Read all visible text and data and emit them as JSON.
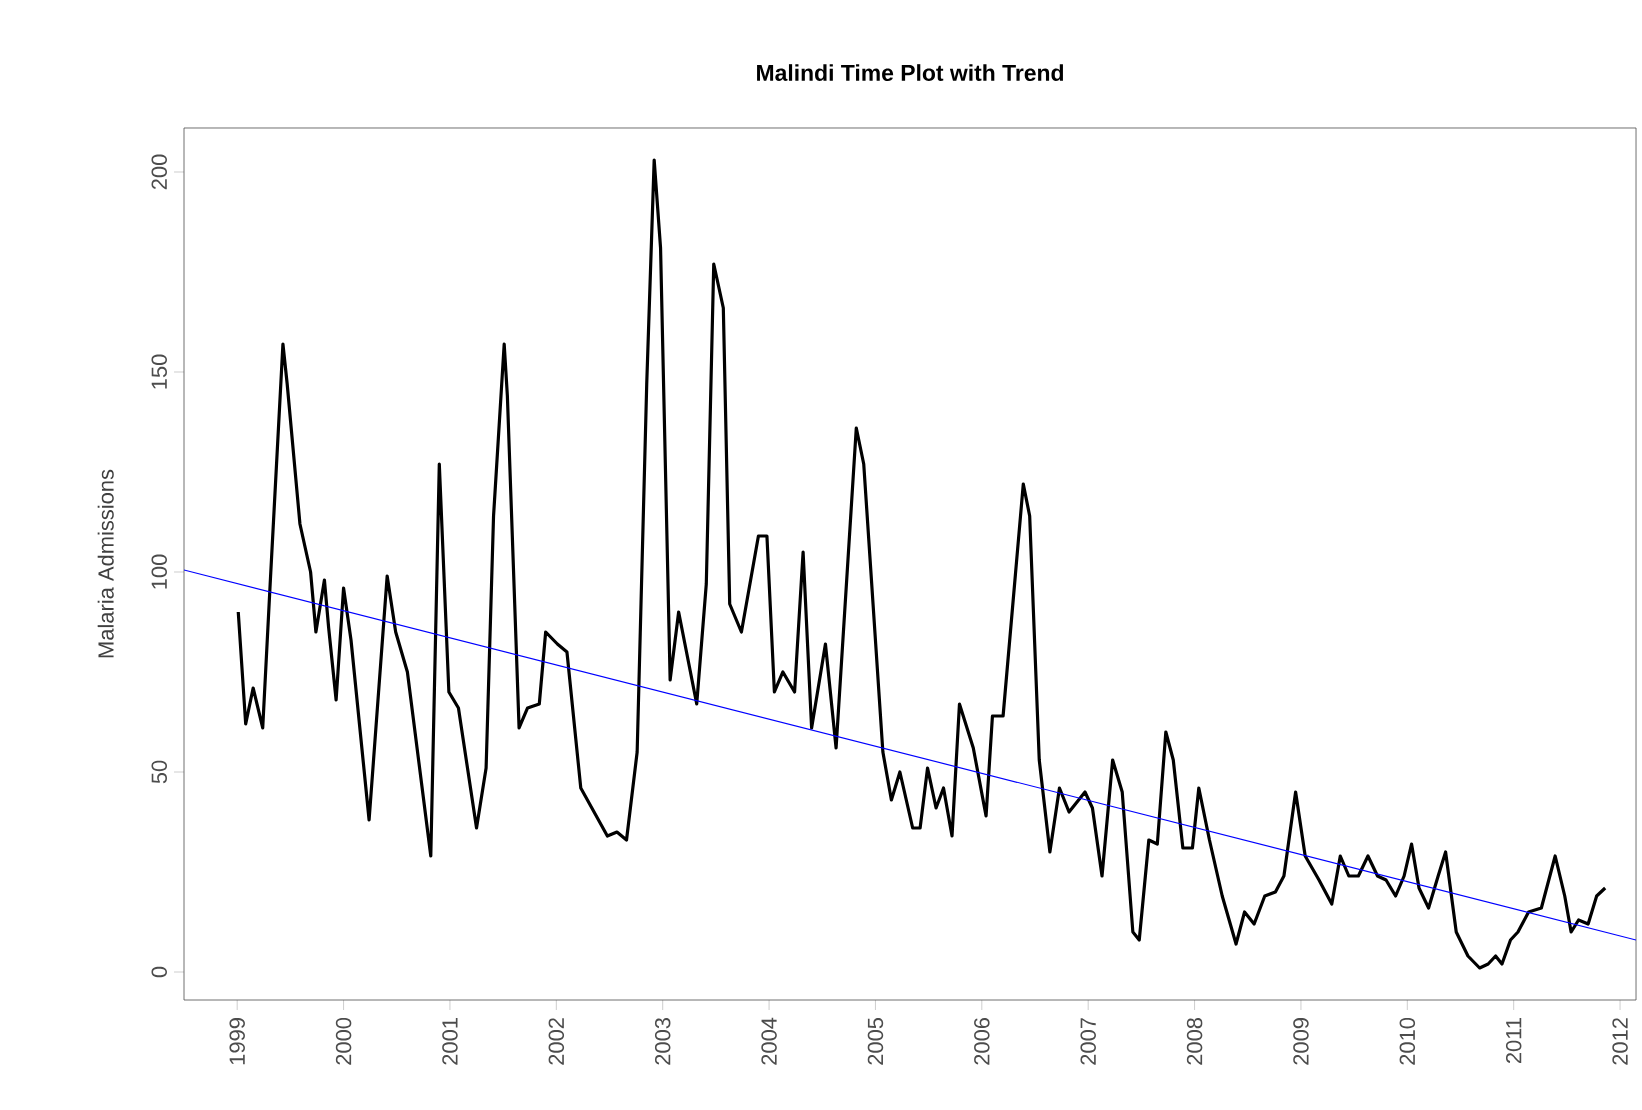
{
  "chart_data": {
    "type": "line",
    "title": "Malindi Time Plot with Trend",
    "ylabel": "Malaria Admissions",
    "xlim": [
      1998.5,
      2012.15
    ],
    "ylim": [
      -7,
      211
    ],
    "xticks": [
      1999,
      2000,
      2001,
      2002,
      2003,
      2004,
      2005,
      2006,
      2007,
      2008,
      2009,
      2010,
      2011,
      2012
    ],
    "yticks": [
      0,
      50,
      100,
      150,
      200
    ],
    "grid": false,
    "marker": "none",
    "line_style": "solid",
    "series": [
      {
        "color": "#000000",
        "x": [
          1999.01,
          1999.08,
          1999.15,
          1999.24,
          1999.31,
          1999.43,
          1999.47,
          1999.59,
          1999.69,
          1999.74,
          1999.82,
          1999.86,
          1999.93,
          2000.0,
          2000.07,
          2000.24,
          2000.41,
          2000.49,
          2000.6,
          2000.82,
          2000.9,
          2000.99,
          2001.08,
          2001.25,
          2001.34,
          2001.41,
          2001.51,
          2001.54,
          2001.65,
          2001.73,
          2001.84,
          2001.9,
          2002.01,
          2002.1,
          2002.23,
          2002.48,
          2002.57,
          2002.66,
          2002.76,
          2002.85,
          2002.92,
          2002.98,
          2003.07,
          2003.15,
          2003.32,
          2003.41,
          2003.48,
          2003.57,
          2003.63,
          2003.74,
          2003.9,
          2003.98,
          2004.05,
          2004.13,
          2004.24,
          2004.32,
          2004.4,
          2004.53,
          2004.63,
          2004.82,
          2004.89,
          2005.07,
          2005.15,
          2005.23,
          2005.35,
          2005.42,
          2005.49,
          2005.57,
          2005.64,
          2005.72,
          2005.79,
          2005.92,
          2006.04,
          2006.1,
          2006.2,
          2006.39,
          2006.45,
          2006.54,
          2006.64,
          2006.73,
          2006.82,
          2006.97,
          2007.04,
          2007.13,
          2007.23,
          2007.32,
          2007.42,
          2007.48,
          2007.57,
          2007.65,
          2007.73,
          2007.8,
          2007.89,
          2007.98,
          2008.04,
          2008.14,
          2008.26,
          2008.39,
          2008.47,
          2008.56,
          2008.66,
          2008.76,
          2008.84,
          2008.95,
          2009.04,
          2009.17,
          2009.29,
          2009.37,
          2009.45,
          2009.54,
          2009.63,
          2009.72,
          2009.8,
          2009.89,
          2009.97,
          2010.04,
          2010.11,
          2010.2,
          2010.29,
          2010.36,
          2010.46,
          2010.57,
          2010.68,
          2010.76,
          2010.83,
          2010.89,
          2010.97,
          2011.04,
          2011.14,
          2011.26,
          2011.39,
          2011.48,
          2011.54,
          2011.61,
          2011.7,
          2011.78,
          2011.86
        ],
        "values": [
          90,
          62,
          71,
          61,
          97,
          157,
          147,
          112,
          100,
          85,
          98,
          86,
          68,
          96,
          83,
          38,
          99,
          85,
          75,
          29,
          127,
          70,
          66,
          36,
          51,
          114,
          157,
          144,
          61,
          66,
          67,
          85,
          82,
          80,
          46,
          34,
          35,
          33,
          55,
          147,
          203,
          181,
          73,
          90,
          67,
          97,
          177,
          166,
          92,
          85,
          109,
          109,
          70,
          75,
          70,
          105,
          61,
          82,
          56,
          136,
          127,
          55,
          43,
          50,
          36,
          36,
          51,
          41,
          46,
          34,
          67,
          56,
          39,
          64,
          64,
          122,
          114,
          53,
          30,
          46,
          40,
          45,
          41,
          24,
          53,
          45,
          10,
          8,
          33,
          32,
          60,
          53,
          31,
          31,
          46,
          33,
          19,
          7,
          15,
          12,
          19,
          20,
          24,
          45,
          29,
          23,
          17,
          29,
          24,
          24,
          29,
          24,
          23,
          19,
          24,
          32,
          21,
          16,
          24,
          30,
          10,
          4,
          1,
          2,
          4,
          2,
          8,
          10,
          15,
          16,
          29,
          19,
          10,
          13,
          12,
          19,
          21
        ]
      },
      {
        "color": "#0000ff",
        "type": "line",
        "x": [
          1998.5,
          2012.15
        ],
        "values": [
          100.5,
          8
        ]
      }
    ]
  }
}
